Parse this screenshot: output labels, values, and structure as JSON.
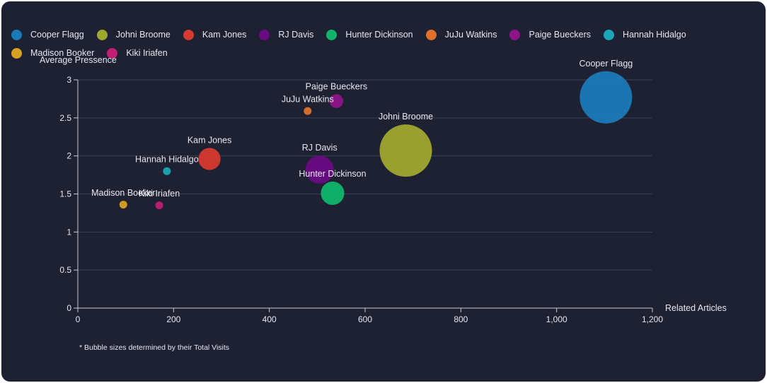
{
  "chart_data": {
    "type": "scatter",
    "title": "",
    "xlabel": "Related Articles",
    "ylabel": "Average Pressence",
    "xlim": [
      0,
      1200
    ],
    "ylim": [
      0,
      3
    ],
    "x_ticks": [
      0,
      200,
      400,
      600,
      800,
      1000,
      1200
    ],
    "x_tick_labels": [
      "0",
      "200",
      "400",
      "600",
      "800",
      "1,000",
      "1,200"
    ],
    "y_ticks": [
      0,
      0.5,
      1,
      1.5,
      2,
      2.5,
      3
    ],
    "y_tick_labels": [
      "0",
      "0.5",
      "1",
      "1.5",
      "2",
      "2.5",
      "3"
    ],
    "grid": "horizontal",
    "legend_position": "top",
    "bubble_size_field": "Total Visits",
    "footnote": "* Bubble sizes determined by their Total Visits",
    "series": [
      {
        "name": "Cooper Flagg",
        "color": "#1b7ab8",
        "x": 1103,
        "y": 2.77,
        "relative_size": 1.0
      },
      {
        "name": "Johni Broome",
        "color": "#a0a82f",
        "x": 685,
        "y": 2.07,
        "relative_size": 1.0
      },
      {
        "name": "Kam Jones",
        "color": "#d63a30",
        "x": 275,
        "y": 1.96,
        "relative_size": 0.178
      },
      {
        "name": "RJ Davis",
        "color": "#6a0b84",
        "x": 505,
        "y": 1.82,
        "relative_size": 0.288
      },
      {
        "name": "Hunter Dickinson",
        "color": "#10b56c",
        "x": 532,
        "y": 1.51,
        "relative_size": 0.2
      },
      {
        "name": "JuJu Watkins",
        "color": "#e0702a",
        "x": 480,
        "y": 2.59,
        "relative_size": 0.0136
      },
      {
        "name": "Paige Bueckers",
        "color": "#8e1589",
        "x": 540,
        "y": 2.72,
        "relative_size": 0.0693
      },
      {
        "name": "Hannah Hidalgo",
        "color": "#1aa7b8",
        "x": 186,
        "y": 1.8,
        "relative_size": 0.00616
      },
      {
        "name": "Madison Booker",
        "color": "#d8a11f",
        "x": 95,
        "y": 1.36,
        "relative_size": 0.00616
      },
      {
        "name": "Kiki Iriafen",
        "color": "#c21e74",
        "x": 170,
        "y": 1.35,
        "relative_size": 0.00876
      }
    ]
  }
}
